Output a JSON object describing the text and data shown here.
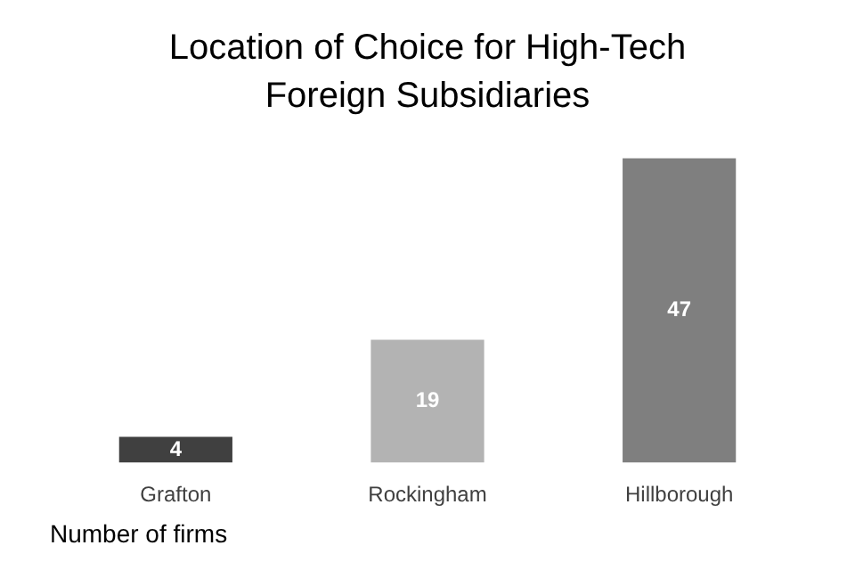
{
  "chart_data": {
    "type": "bar",
    "title": "Location of Choice for High-Tech Foreign Subsidiaries",
    "xlabel": "Number of firms",
    "categories": [
      "Grafton",
      "Rockingham",
      "Hillborough"
    ],
    "values": [
      4,
      19,
      47
    ],
    "colors": [
      "#404040",
      "#b3b3b3",
      "#7f7f7f"
    ],
    "data_labels": true,
    "grid": false,
    "legend": false
  }
}
